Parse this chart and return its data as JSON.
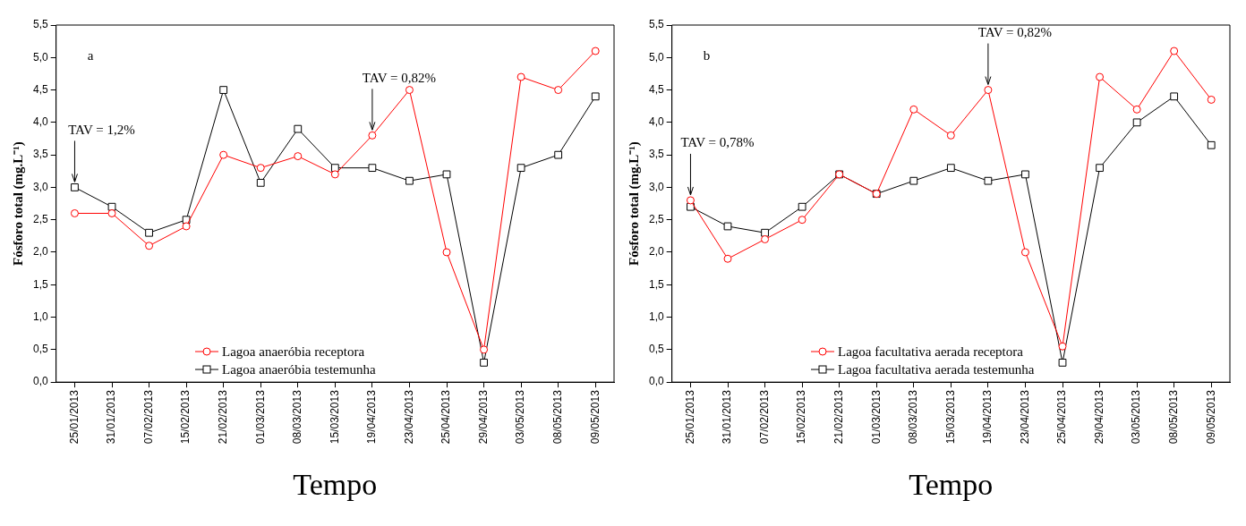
{
  "chart_data": [
    {
      "type": "line",
      "xlabel": "Tempo",
      "ylabel": "Fósforo total (mg.L⁻¹)",
      "categories": [
        "25/01/2013",
        "31/01/2013",
        "07/02/2013",
        "15/02/2013",
        "21/02/2013",
        "01/03/2013",
        "08/03/2013",
        "15/03/2013",
        "19/04/2013",
        "23/04/2013",
        "25/04/2013",
        "29/04/2013",
        "03/05/2013",
        "08/05/2013",
        "09/05/2013"
      ],
      "series": [
        {
          "name": "Lagoa anaeróbia receptora",
          "color": "#ff0000",
          "marker": "circle",
          "values": [
            2.6,
            2.6,
            2.1,
            2.4,
            3.5,
            3.3,
            3.48,
            3.2,
            3.8,
            4.5,
            2.0,
            0.5,
            4.7,
            4.5,
            5.1
          ]
        },
        {
          "name": "Lagoa anaeróbia testemunha",
          "color": "#000000",
          "marker": "square",
          "values": [
            3.0,
            2.7,
            2.3,
            2.5,
            4.5,
            3.07,
            3.9,
            3.3,
            3.3,
            3.1,
            3.2,
            0.3,
            3.3,
            3.5,
            4.4
          ]
        }
      ],
      "ylim": [
        0,
        5.5
      ],
      "yticks": [
        {
          "value": 0,
          "label": "0,0"
        },
        {
          "value": 0.5,
          "label": "0,5"
        },
        {
          "value": 1,
          "label": "1,0"
        },
        {
          "value": 1.5,
          "label": "1,5"
        },
        {
          "value": 2,
          "label": "2,0"
        },
        {
          "value": 2.5,
          "label": "2,5"
        },
        {
          "value": 3,
          "label": "3,0"
        },
        {
          "value": 3.5,
          "label": "3,5"
        },
        {
          "value": 4,
          "label": "4,0"
        },
        {
          "value": 4.5,
          "label": "4,5"
        },
        {
          "value": 5,
          "label": "5,0"
        },
        {
          "value": 5.5,
          "label": "5,5"
        }
      ],
      "legend": "bottom left",
      "annotations": [
        "a",
        {
          "text": "TAV = 1,2%",
          "x": "25/01/2013",
          "y": 3.0
        },
        {
          "text": "TAV = 0,82%",
          "x": "19/04/2013",
          "y": 3.8
        }
      ]
    },
    {
      "type": "line",
      "xlabel": "Tempo",
      "ylabel": "Fósforo total (mg.L⁻¹)",
      "categories": [
        "25/01/2013",
        "31/01/2013",
        "07/02/2013",
        "15/02/2013",
        "21/02/2013",
        "01/03/2013",
        "08/03/2013",
        "15/03/2013",
        "19/04/2013",
        "23/04/2013",
        "25/04/2013",
        "29/04/2013",
        "03/05/2013",
        "08/05/2013",
        "09/05/2013"
      ],
      "series": [
        {
          "name": "Lagoa facultativa aerada receptora",
          "color": "#ff0000",
          "marker": "circle",
          "values": [
            2.8,
            1.9,
            2.2,
            2.5,
            3.2,
            2.9,
            4.2,
            3.8,
            4.5,
            2.0,
            0.55,
            4.7,
            4.2,
            5.1,
            4.35
          ]
        },
        {
          "name": "Lagoa facultativa aerada testemunha",
          "color": "#000000",
          "marker": "square",
          "values": [
            2.7,
            2.4,
            2.3,
            2.7,
            3.2,
            2.9,
            3.1,
            3.3,
            3.1,
            3.2,
            0.3,
            3.3,
            4.0,
            4.4,
            3.65
          ]
        }
      ],
      "ylim": [
        0,
        5.5
      ],
      "yticks": [
        {
          "value": 0,
          "label": "0,0"
        },
        {
          "value": 0.5,
          "label": "0,5"
        },
        {
          "value": 1,
          "label": "1,0"
        },
        {
          "value": 1.5,
          "label": "1,5"
        },
        {
          "value": 2,
          "label": "2,0"
        },
        {
          "value": 2.5,
          "label": "2,5"
        },
        {
          "value": 3,
          "label": "3,0"
        },
        {
          "value": 3.5,
          "label": "3,5"
        },
        {
          "value": 4,
          "label": "4,0"
        },
        {
          "value": 4.5,
          "label": "4,5"
        },
        {
          "value": 5,
          "label": "5,0"
        },
        {
          "value": 5.5,
          "label": "5,5"
        }
      ],
      "legend": "bottom left",
      "annotations": [
        "b",
        {
          "text": "TAV = 0,78%",
          "x": "25/01/2013",
          "y": 2.8
        },
        {
          "text": "TAV = 0,82%",
          "x": "19/04/2013",
          "y": 4.5
        }
      ]
    }
  ]
}
